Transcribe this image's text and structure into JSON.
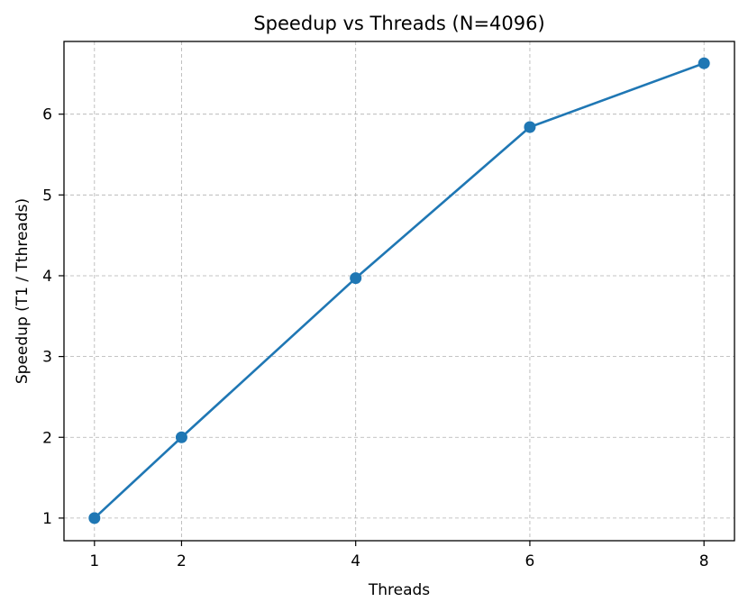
{
  "chart_data": {
    "type": "line",
    "title": "Speedup vs Threads (N=4096)",
    "xlabel": "Threads",
    "ylabel": "Speedup (T1 / Tthreads)",
    "x": [
      1,
      2,
      4,
      6,
      8
    ],
    "series": [
      {
        "values": [
          1.0,
          2.0,
          3.97,
          5.84,
          6.63
        ],
        "color": "#1f77b4",
        "marker": "circle"
      }
    ],
    "xticks": [
      1,
      2,
      4,
      6,
      8
    ],
    "yticks": [
      1,
      2,
      3,
      4,
      5,
      6
    ],
    "xlim": [
      0.65,
      8.35
    ],
    "ylim": [
      0.72,
      6.9
    ],
    "grid": true,
    "legend": false
  }
}
